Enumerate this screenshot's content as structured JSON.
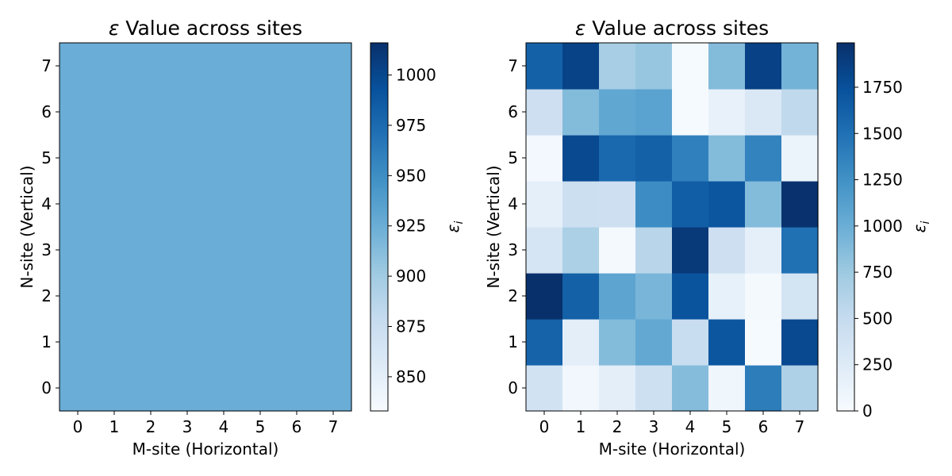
{
  "figure": {
    "background": "#ffffff"
  },
  "chart_data": [
    {
      "type": "heatmap",
      "title_symbol": "ε",
      "title_text": " Value across sites",
      "xlabel": "M-site (Horizontal)",
      "ylabel": "N-site (Vertical)",
      "x_ticks": [
        "0",
        "1",
        "2",
        "3",
        "4",
        "5",
        "6",
        "7"
      ],
      "y_ticks": [
        "0",
        "1",
        "2",
        "3",
        "4",
        "5",
        "6",
        "7"
      ],
      "colormap": "Blues",
      "colorbar": {
        "label_symbol": "ε",
        "label_subscript": "i",
        "vmin": 833,
        "vmax": 1016,
        "ticks": [
          850,
          875,
          900,
          925,
          950,
          975,
          1000
        ],
        "tick_labels": [
          "850",
          "875",
          "900",
          "925",
          "950",
          "975",
          "1000"
        ]
      },
      "values": [
        [
          925,
          925,
          925,
          925,
          925,
          925,
          925,
          925
        ],
        [
          925,
          925,
          925,
          925,
          925,
          925,
          925,
          925
        ],
        [
          925,
          925,
          925,
          925,
          925,
          925,
          925,
          925
        ],
        [
          925,
          925,
          925,
          925,
          925,
          925,
          925,
          925
        ],
        [
          925,
          925,
          925,
          925,
          925,
          925,
          925,
          925
        ],
        [
          925,
          925,
          925,
          925,
          925,
          925,
          925,
          925
        ],
        [
          925,
          925,
          925,
          925,
          925,
          925,
          925,
          925
        ],
        [
          925,
          925,
          925,
          925,
          925,
          925,
          925,
          925
        ]
      ]
    },
    {
      "type": "heatmap",
      "title_symbol": "ε",
      "title_text": " Value across sites",
      "xlabel": "M-site (Horizontal)",
      "ylabel": "N-site (Vertical)",
      "x_ticks": [
        "0",
        "1",
        "2",
        "3",
        "4",
        "5",
        "6",
        "7"
      ],
      "y_ticks": [
        "0",
        "1",
        "2",
        "3",
        "4",
        "5",
        "6",
        "7"
      ],
      "colormap": "Blues",
      "colorbar": {
        "label_symbol": "ε",
        "label_subscript": "i",
        "vmin": 0,
        "vmax": 1990,
        "ticks": [
          0,
          250,
          500,
          750,
          1000,
          1250,
          1500,
          1750
        ],
        "tick_labels": [
          "0",
          "250",
          "500",
          "750",
          "1000",
          "1250",
          "1500",
          "1750"
        ]
      },
      "values": [
        [
          380,
          60,
          200,
          420,
          870,
          80,
          1400,
          640
        ],
        [
          1600,
          200,
          880,
          1050,
          470,
          1700,
          20,
          1800
        ],
        [
          1990,
          1620,
          1080,
          930,
          1720,
          160,
          30,
          360
        ],
        [
          340,
          660,
          30,
          580,
          1920,
          430,
          190,
          1500
        ],
        [
          180,
          440,
          430,
          1280,
          1640,
          1700,
          880,
          1980
        ],
        [
          40,
          1800,
          1560,
          1620,
          1380,
          880,
          1360,
          110
        ],
        [
          430,
          880,
          1060,
          1100,
          20,
          150,
          290,
          530
        ],
        [
          1620,
          1850,
          690,
          780,
          20,
          880,
          1860,
          950
        ]
      ]
    }
  ]
}
